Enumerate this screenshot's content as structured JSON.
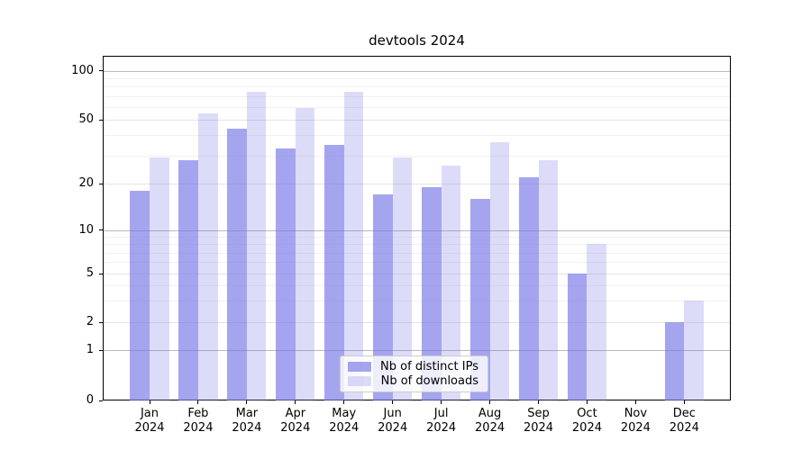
{
  "chart_data": {
    "type": "bar",
    "title": "devtools 2024",
    "categories": [
      "Jan",
      "Feb",
      "Mar",
      "Apr",
      "May",
      "Jun",
      "Jul",
      "Aug",
      "Sep",
      "Oct",
      "Nov",
      "Dec"
    ],
    "x_tick_year": "2024",
    "series": [
      {
        "name": "Nb of distinct IPs",
        "color": "rgba(116,116,231,0.65)",
        "values": [
          18,
          28,
          44,
          33,
          35,
          17,
          19,
          16,
          22,
          5,
          0,
          2
        ]
      },
      {
        "name": "Nb of downloads",
        "color": "rgba(116,116,231,0.25)",
        "values": [
          29,
          55,
          74,
          59,
          74,
          29,
          26,
          36,
          28,
          8,
          0,
          3
        ]
      }
    ],
    "yscale": "symlog-like",
    "yticks": [
      0,
      1,
      2,
      5,
      10,
      20,
      50,
      100
    ],
    "minor_yticks": [
      3,
      4,
      6,
      7,
      8,
      9,
      30,
      40,
      60,
      70,
      80,
      90
    ],
    "light_grid_yticks": [
      2,
      5,
      20,
      50
    ],
    "dark_grid_yticks": [
      1,
      10,
      100
    ],
    "ylim": [
      0,
      120
    ],
    "grid": true,
    "legend_position": "lower center",
    "colors": {
      "bar_base": "#7474e7",
      "grid_major": "#b9b9b9",
      "grid_light": "#e4e4e4",
      "grid_minor": "#f1f1f1",
      "spine": "#000000",
      "background": "#ffffff"
    }
  }
}
